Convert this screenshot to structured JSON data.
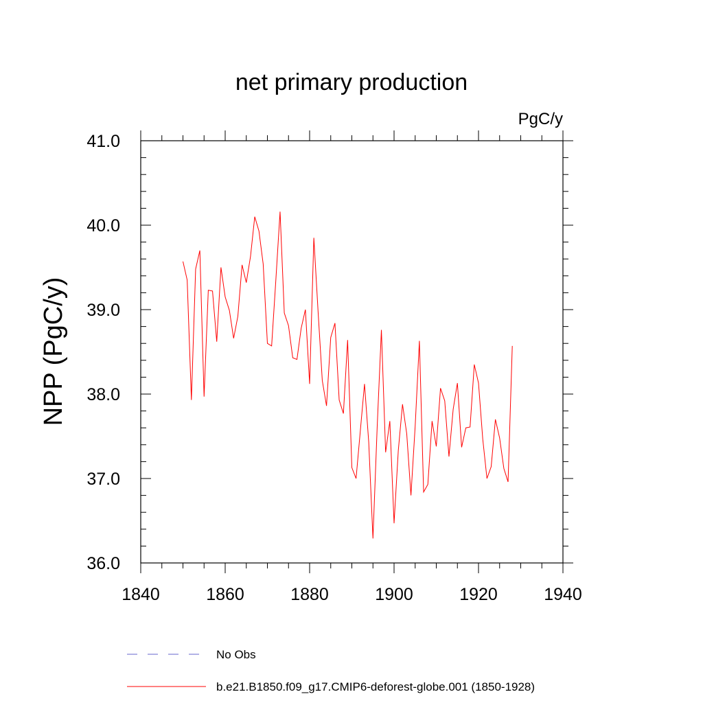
{
  "chart_data": {
    "type": "line",
    "title": "net primary production",
    "units_label": "PgC/y",
    "ylabel": "NPP  (PgC/y)",
    "xlabel": "",
    "xlim": [
      1840,
      1940
    ],
    "ylim": [
      36.0,
      41.0
    ],
    "x_ticks": [
      "1840",
      "1860",
      "1880",
      "1900",
      "1920",
      "1940"
    ],
    "y_ticks": [
      "36.0",
      "37.0",
      "38.0",
      "39.0",
      "40.0",
      "41.0"
    ],
    "legend": [
      {
        "name": "No Obs",
        "style": "dashed",
        "color": "#6666cc"
      },
      {
        "name": "b.e21.B1850.f09_g17.CMIP6-deforest-globe.001 (1850-1928)",
        "style": "solid",
        "color": "#ff0000"
      }
    ],
    "series": [
      {
        "name": "b.e21.B1850.f09_g17.CMIP6-deforest-globe.001 (1850-1928)",
        "color": "#ff0000",
        "x": [
          1850,
          1851,
          1852,
          1853,
          1854,
          1855,
          1856,
          1857,
          1858,
          1859,
          1860,
          1861,
          1862,
          1863,
          1864,
          1865,
          1866,
          1867,
          1868,
          1869,
          1870,
          1871,
          1872,
          1873,
          1874,
          1875,
          1876,
          1877,
          1878,
          1879,
          1880,
          1881,
          1882,
          1883,
          1884,
          1885,
          1886,
          1887,
          1888,
          1889,
          1890,
          1891,
          1892,
          1893,
          1894,
          1895,
          1896,
          1897,
          1898,
          1899,
          1900,
          1901,
          1902,
          1903,
          1904,
          1905,
          1906,
          1907,
          1908,
          1909,
          1910,
          1911,
          1912,
          1913,
          1914,
          1915,
          1916,
          1917,
          1918,
          1919,
          1920,
          1921,
          1922,
          1923,
          1924,
          1925,
          1926,
          1927,
          1928
        ],
        "values": [
          39.57,
          39.35,
          37.93,
          39.48,
          39.7,
          37.97,
          39.23,
          39.22,
          38.62,
          39.5,
          39.15,
          38.99,
          38.66,
          38.92,
          39.53,
          39.32,
          39.63,
          40.1,
          39.93,
          39.54,
          38.6,
          38.57,
          39.35,
          40.16,
          38.96,
          38.81,
          38.43,
          38.41,
          38.78,
          39.0,
          38.12,
          39.85,
          38.98,
          38.16,
          37.86,
          38.67,
          38.84,
          37.93,
          37.77,
          38.64,
          37.13,
          37.0,
          37.56,
          38.12,
          37.43,
          36.29,
          37.61,
          38.76,
          37.31,
          37.68,
          36.47,
          37.33,
          37.88,
          37.53,
          36.8,
          37.62,
          38.63,
          36.84,
          36.93,
          37.68,
          37.38,
          38.07,
          37.92,
          37.26,
          37.82,
          38.13,
          37.37,
          37.6,
          37.61,
          38.35,
          38.13,
          37.47,
          37.0,
          37.14,
          37.7,
          37.48,
          37.12,
          36.96,
          38.57
        ]
      }
    ]
  }
}
